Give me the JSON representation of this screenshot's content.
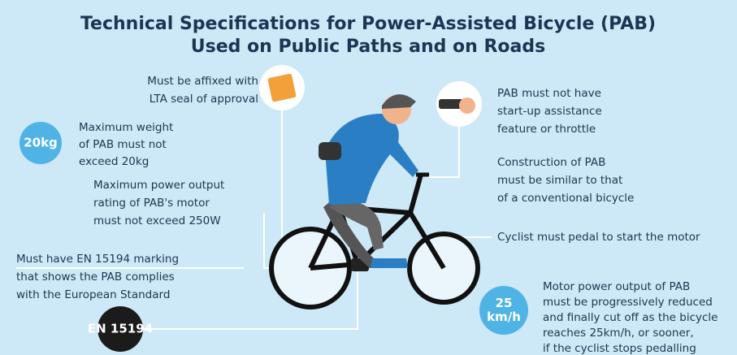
{
  "header": {
    "title": [
      "Technical Specifications for Power-Assisted Bicycle (PAB)",
      "Used on Public Paths and on Roads"
    ]
  },
  "callouts": [
    {
      "lines": [
        "Must be affixed with",
        "LTA seal of approval"
      ]
    },
    {
      "badge": [
        "20kg"
      ],
      "lines": [
        "Maximum weight",
        "of PAB must not",
        "exceed 20kg"
      ]
    },
    {
      "lines": [
        "Maximum power output",
        "rating of PAB's motor",
        "must not exceed 250W"
      ]
    },
    {
      "badge": [
        "EN 15194"
      ],
      "lines": [
        "Must have EN 15194 marking",
        "that shows the PAB complies",
        "with the European Standard"
      ]
    },
    {
      "lines": [
        "PAB must not have",
        "start-up assistance",
        "feature or throttle"
      ]
    },
    {
      "lines": [
        "Construction of PAB",
        "must be similar to that",
        "of a conventional bicycle"
      ]
    },
    {
      "lines": [
        "Cyclist must pedal to start the motor"
      ]
    },
    {
      "badge": [
        "25",
        "km/h"
      ],
      "lines": [
        "Motor power output of PAB",
        "must be progressively reduced",
        "and finally cut off as the bicycle",
        "reaches 25km/h, or sooner,",
        "if the cyclist stops pedalling"
      ]
    }
  ]
}
